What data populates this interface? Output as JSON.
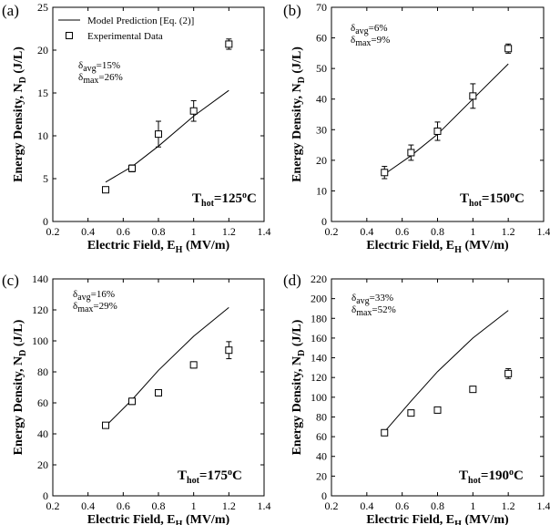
{
  "chart_data": [
    {
      "type": "line",
      "panel_label": "(a)",
      "xlabel": "Electric Field, E",
      "xlabel_sub": "H",
      "xlabel_unit": " (MV/m)",
      "ylabel": "Energy Density, N",
      "ylabel_sub": "D",
      "ylabel_unit": " (J/L)",
      "xlim": [
        0.2,
        1.4
      ],
      "ylim": [
        0,
        25
      ],
      "xticks": [
        "0.2",
        "0.4",
        "0.6",
        "0.8",
        "1",
        "1.2",
        "1.4"
      ],
      "yticks": [
        "0",
        "5",
        "10",
        "15",
        "20",
        "25"
      ],
      "legend": {
        "model": "Model Prediction [Eq. (2)]",
        "experimental": "Experimental Data"
      },
      "delta_avg": "=15%",
      "delta_max": "=26%",
      "temperature": "=125",
      "temperature_unit": "C",
      "model": {
        "x": [
          0.5,
          0.65,
          0.8,
          1.0,
          1.2
        ],
        "y": [
          4.6,
          6.4,
          8.8,
          12.3,
          15.3
        ]
      },
      "experimental": {
        "x": [
          0.5,
          0.65,
          0.8,
          1.0,
          1.2
        ],
        "y": [
          3.7,
          6.2,
          10.2,
          12.9,
          20.7
        ],
        "err": [
          0.3,
          0.4,
          1.5,
          1.2,
          0.6
        ]
      }
    },
    {
      "type": "line",
      "panel_label": "(b)",
      "xlabel": "Electric Field, E",
      "xlabel_sub": "H",
      "xlabel_unit": " (MV/m)",
      "ylabel": "Energy Density, N",
      "ylabel_sub": "D",
      "ylabel_unit": " (J/L)",
      "xlim": [
        0.2,
        1.4
      ],
      "ylim": [
        0,
        70
      ],
      "xticks": [
        "0.2",
        "0.4",
        "0.6",
        "0.8",
        "1",
        "1.2",
        "1.4"
      ],
      "yticks": [
        "0",
        "10",
        "20",
        "30",
        "40",
        "50",
        "60",
        "70"
      ],
      "delta_avg": "=6%",
      "delta_max": "=9%",
      "temperature": "=150",
      "temperature_unit": "C",
      "model": {
        "x": [
          0.5,
          0.65,
          0.8,
          1.0,
          1.2
        ],
        "y": [
          15.5,
          21.5,
          28.5,
          40.0,
          51.5
        ]
      },
      "experimental": {
        "x": [
          0.5,
          0.65,
          0.8,
          1.0,
          1.2
        ],
        "y": [
          16.0,
          22.5,
          29.5,
          41.0,
          56.5
        ],
        "err": [
          2.0,
          2.5,
          3.0,
          4.0,
          1.5
        ]
      }
    },
    {
      "type": "line",
      "panel_label": "(c)",
      "xlabel": "Electric Field, E",
      "xlabel_sub": "H",
      "xlabel_unit": " (MV/m)",
      "ylabel": "Energy Density, N",
      "ylabel_sub": "D",
      "ylabel_unit": " (J/L)",
      "xlim": [
        0.2,
        1.4
      ],
      "ylim": [
        0,
        140
      ],
      "xticks": [
        "0.2",
        "0.4",
        "0.6",
        "0.8",
        "1",
        "1.2",
        "1.4"
      ],
      "yticks": [
        "0",
        "20",
        "40",
        "60",
        "80",
        "100",
        "120",
        "140"
      ],
      "delta_avg": "=16%",
      "delta_max": "=29%",
      "temperature": "=175",
      "temperature_unit": "C",
      "model": {
        "x": [
          0.5,
          0.65,
          0.8,
          1.0,
          1.2
        ],
        "y": [
          45.0,
          62.0,
          81.0,
          103.0,
          121.5
        ]
      },
      "experimental": {
        "x": [
          0.5,
          0.65,
          0.8,
          1.0,
          1.2
        ],
        "y": [
          45.5,
          61.0,
          66.5,
          84.5,
          94.0
        ],
        "err": [
          1.5,
          2.0,
          2.0,
          2.0,
          5.5
        ]
      }
    },
    {
      "type": "line",
      "panel_label": "(d)",
      "xlabel": "Electric Field, E",
      "xlabel_sub": "H",
      "xlabel_unit": " (MV/m)",
      "ylabel": "Energy Density, N",
      "ylabel_sub": "D",
      "ylabel_unit": " (J/L)",
      "xlim": [
        0.2,
        1.4
      ],
      "ylim": [
        0,
        220
      ],
      "xticks": [
        "0.2",
        "0.4",
        "0.6",
        "0.8",
        "1",
        "1.2",
        "1.4"
      ],
      "yticks": [
        "0",
        "20",
        "40",
        "60",
        "80",
        "100",
        "120",
        "140",
        "160",
        "180",
        "200",
        "220"
      ],
      "delta_avg": "=33%",
      "delta_max": "=52%",
      "temperature": "=190",
      "temperature_unit": "C",
      "model": {
        "x": [
          0.5,
          0.65,
          0.8,
          1.0,
          1.2
        ],
        "y": [
          65.0,
          96.0,
          126.0,
          160.0,
          188.0
        ]
      },
      "experimental": {
        "x": [
          0.5,
          0.65,
          0.8,
          1.0,
          1.2
        ],
        "y": [
          64.0,
          84.0,
          87.0,
          108.0,
          124.0
        ],
        "err": [
          3.0,
          3.0,
          3.0,
          3.0,
          5.0
        ]
      }
    }
  ]
}
